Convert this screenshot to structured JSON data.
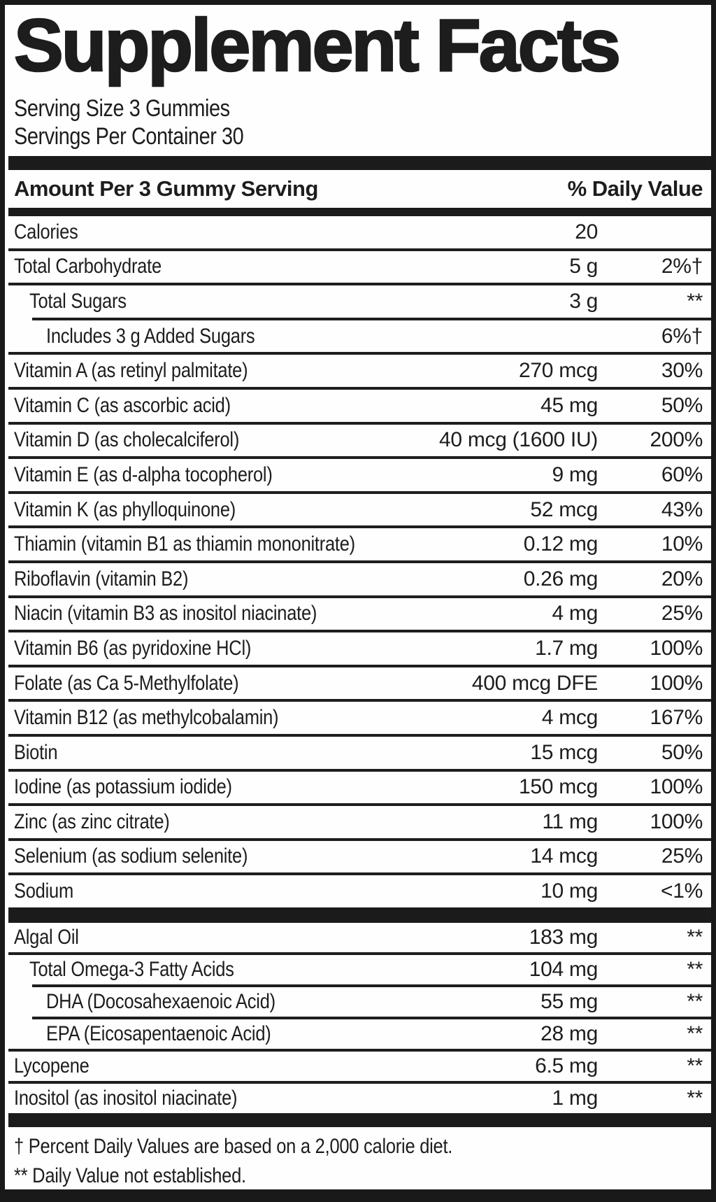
{
  "header": {
    "title": "Supplement Facts",
    "serving_size": "Serving Size 3 Gummies",
    "servings_per_container": "Servings Per Container 30"
  },
  "columns": {
    "left": "Amount Per 3 Gummy Serving",
    "right": "% Daily Value"
  },
  "colors": {
    "ink": "#1d1d1d",
    "bar": "#1b1b1b",
    "background": "#fefefe"
  },
  "table1": {
    "rows": [
      {
        "label": "Calories",
        "amount": "20",
        "dv": "",
        "indent": 0,
        "sep": "none"
      },
      {
        "label": "Total Carbohydrate",
        "amount": "5 g",
        "dv": "2%†",
        "indent": 0,
        "sep": "full"
      },
      {
        "label": "Total Sugars",
        "amount": "3 g",
        "dv": "**",
        "indent": 1,
        "sep": "full"
      },
      {
        "label": "Includes 3 g Added Sugars",
        "amount": "",
        "dv": "6%†",
        "indent": 2,
        "sep": "sub"
      },
      {
        "label": "Vitamin A (as retinyl palmitate)",
        "amount": "270 mcg",
        "dv": "30%",
        "indent": 0,
        "sep": "full"
      },
      {
        "label": "Vitamin C (as ascorbic acid)",
        "amount": "45 mg",
        "dv": "50%",
        "indent": 0,
        "sep": "full"
      },
      {
        "label": "Vitamin D (as cholecalciferol)",
        "amount": "40 mcg (1600 IU)",
        "dv": "200%",
        "indent": 0,
        "sep": "full"
      },
      {
        "label": "Vitamin E (as d-alpha tocopherol)",
        "amount": "9 mg",
        "dv": "60%",
        "indent": 0,
        "sep": "full"
      },
      {
        "label": "Vitamin K (as phylloquinone)",
        "amount": "52 mcg",
        "dv": "43%",
        "indent": 0,
        "sep": "full"
      },
      {
        "label": "Thiamin (vitamin B1 as thiamin mononitrate)",
        "amount": "0.12 mg",
        "dv": "10%",
        "indent": 0,
        "sep": "full"
      },
      {
        "label": "Riboflavin (vitamin B2)",
        "amount": "0.26 mg",
        "dv": "20%",
        "indent": 0,
        "sep": "full"
      },
      {
        "label": "Niacin (vitamin B3 as inositol niacinate)",
        "amount": "4 mg",
        "dv": "25%",
        "indent": 0,
        "sep": "full"
      },
      {
        "label": "Vitamin B6 (as pyridoxine HCl)",
        "amount": "1.7 mg",
        "dv": "100%",
        "indent": 0,
        "sep": "full"
      },
      {
        "label": "Folate (as Ca 5-Methylfolate)",
        "amount": "400 mcg DFE",
        "dv": "100%",
        "indent": 0,
        "sep": "full"
      },
      {
        "label": "Vitamin B12 (as methylcobalamin)",
        "amount": "4 mcg",
        "dv": "167%",
        "indent": 0,
        "sep": "full"
      },
      {
        "label": "Biotin",
        "amount": "15 mcg",
        "dv": "50%",
        "indent": 0,
        "sep": "full"
      },
      {
        "label": "Iodine (as potassium iodide)",
        "amount": "150 mcg",
        "dv": "100%",
        "indent": 0,
        "sep": "full"
      },
      {
        "label": "Zinc (as zinc citrate)",
        "amount": "11 mg",
        "dv": "100%",
        "indent": 0,
        "sep": "full"
      },
      {
        "label": "Selenium (as sodium selenite)",
        "amount": "14 mcg",
        "dv": "25%",
        "indent": 0,
        "sep": "full"
      },
      {
        "label": "Sodium",
        "amount": "10 mg",
        "dv": "<1%",
        "indent": 0,
        "sep": "full"
      }
    ]
  },
  "table2": {
    "rows": [
      {
        "label": "Algal Oil",
        "amount": "183 mg",
        "dv": "**",
        "indent": 0,
        "sep": "none"
      },
      {
        "label": "Total Omega-3 Fatty Acids",
        "amount": "104 mg",
        "dv": "**",
        "indent": 1,
        "sep": "full"
      },
      {
        "label": "DHA (Docosahexaenoic Acid)",
        "amount": "55 mg",
        "dv": "**",
        "indent": 2,
        "sep": "sub"
      },
      {
        "label": "EPA (Eicosapentaenoic Acid)",
        "amount": "28 mg",
        "dv": "**",
        "indent": 2,
        "sep": "sub"
      },
      {
        "label": "Lycopene",
        "amount": "6.5 mg",
        "dv": "**",
        "indent": 0,
        "sep": "full"
      },
      {
        "label": "Inositol (as inositol niacinate)",
        "amount": "1 mg",
        "dv": "**",
        "indent": 0,
        "sep": "full"
      }
    ]
  },
  "footnotes": [
    "† Percent Daily Values are based on a 2,000 calorie diet.",
    "** Daily Value not established."
  ]
}
